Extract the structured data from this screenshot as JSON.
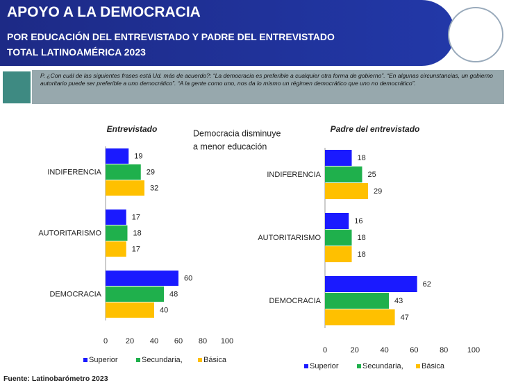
{
  "header": {
    "title": "APOYO A LA DEMOCRACIA",
    "subtitle": "POR EDUCACIÓN DEL ENTREVISTADO Y PADRE DEL ENTREVISTADO",
    "subtitle2": "TOTAL LATINOAMÉRICA 2023"
  },
  "question": "P. ¿Con cuál de las siguientes frases está Ud. más de acuerdo?: “La democracia es preferible a cualquier otra forma de gobierno”. “En algunas circunstancias, un gobierno autoritario puede ser preferible a uno democrático”. “A la gente como uno, nos da lo mismo un régimen democrático que uno no democrático”.",
  "annotation": [
    "Democracia disminuye",
    "a menor educación"
  ],
  "source": "Fuente: Latinobarómetro 2023",
  "chart_data": [
    {
      "type": "hbar",
      "title": "Entrevistado",
      "categories": [
        "INDIFERENCIA",
        "AUTORITARISMO",
        "DEMOCRACIA"
      ],
      "series": [
        {
          "name": "Superior",
          "color": "#1a1aff",
          "values": [
            19,
            17,
            60
          ]
        },
        {
          "name": "Secundaria,",
          "color": "#1fb04c",
          "values": [
            29,
            18,
            48
          ]
        },
        {
          "name": "Básica",
          "color": "#ffc000",
          "values": [
            32,
            17,
            40
          ]
        }
      ],
      "xlim": [
        0,
        100
      ],
      "xticks": [
        0,
        20,
        40,
        60,
        80,
        100
      ]
    },
    {
      "type": "hbar",
      "title": "Padre del entrevistado",
      "categories": [
        "INDIFERENCIA",
        "AUTORITARISMO",
        "DEMOCRACIA"
      ],
      "series": [
        {
          "name": "Superior",
          "color": "#1a1aff",
          "values": [
            18,
            16,
            62
          ]
        },
        {
          "name": "Secundaria,",
          "color": "#1fb04c",
          "values": [
            25,
            18,
            43
          ]
        },
        {
          "name": "Básica",
          "color": "#ffc000",
          "values": [
            29,
            18,
            47
          ]
        }
      ],
      "xlim": [
        0,
        100
      ],
      "xticks": [
        0,
        20,
        40,
        60,
        80,
        100
      ]
    }
  ]
}
